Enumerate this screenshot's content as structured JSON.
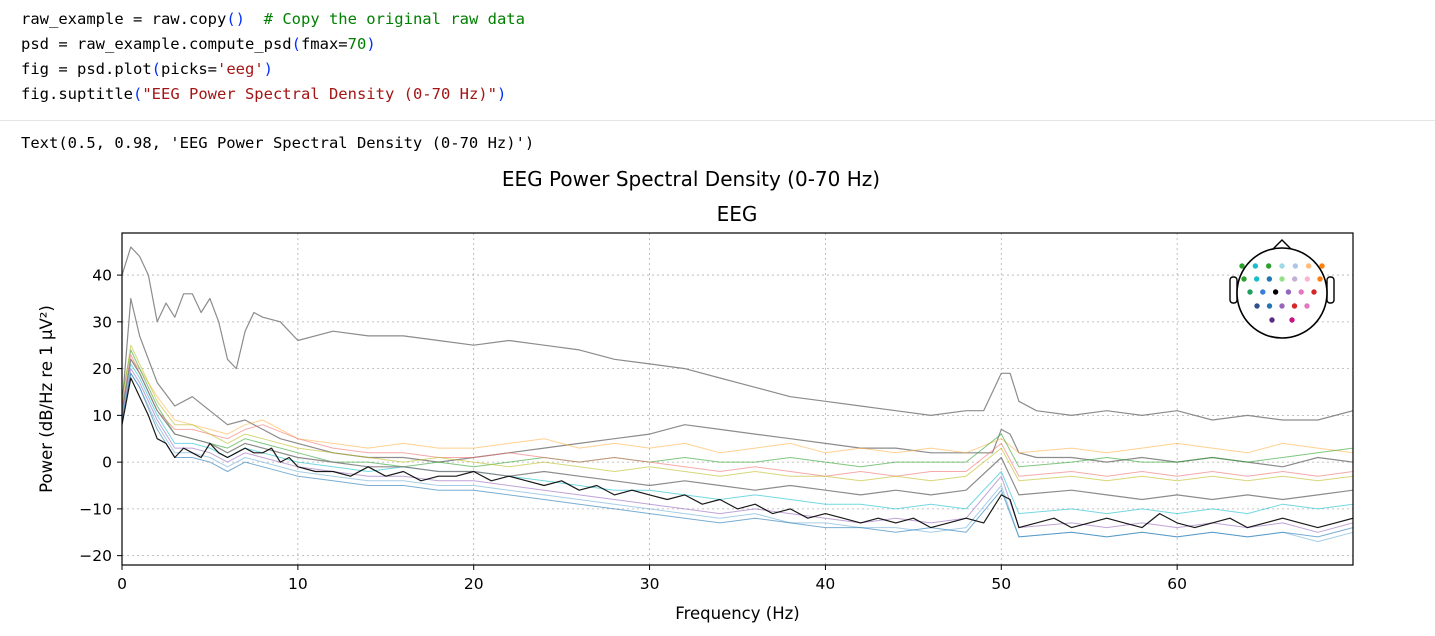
{
  "code": {
    "line1": {
      "a": "raw_example = raw.copy",
      "paren": "()",
      "b": "  ",
      "comment": "# Copy the original raw data"
    },
    "line2": {
      "a": "psd = raw_example.compute_psd",
      "open": "(",
      "b": "fmax=",
      "num": "70",
      "close": ")"
    },
    "line3": {
      "a": "fig = psd.plot",
      "open": "(",
      "b": "picks=",
      "str": "'eeg'",
      "close": ")"
    },
    "line4": {
      "a": "fig.suptitle",
      "open": "(",
      "str": "\"EEG Power Spectral Density (0-70 Hz)\"",
      "close": ")"
    }
  },
  "output": {
    "text": "Text(0.5, 0.98, 'EEG Power Spectral Density (0-70 Hz)')"
  },
  "chart_data": {
    "type": "line",
    "suptitle": "EEG Power Spectral Density (0-70 Hz)",
    "title": "EEG",
    "xlabel": "Frequency (Hz)",
    "ylabel": "Power (dB/Hz re 1 µV²)",
    "xlim": [
      0,
      70
    ],
    "ylim": [
      -22,
      49
    ],
    "xticks": [
      0,
      10,
      20,
      30,
      40,
      50,
      60
    ],
    "yticks": [
      -20,
      -10,
      0,
      10,
      20,
      30,
      40
    ],
    "grid": true,
    "sensor_inset": "top-right",
    "series": [
      {
        "color": "#7f7f7f",
        "x": [
          0,
          0.5,
          1,
          1.5,
          2,
          2.5,
          3,
          3.5,
          4,
          4.5,
          5,
          5.5,
          6,
          6.5,
          7,
          7.5,
          8,
          9,
          10,
          12,
          14,
          16,
          18,
          20,
          22,
          24,
          26,
          28,
          30,
          32,
          34,
          36,
          38,
          40,
          42,
          44,
          46,
          48,
          49,
          50,
          50.5,
          51,
          52,
          54,
          56,
          58,
          60,
          62,
          64,
          66,
          68,
          70
        ],
        "values": [
          40,
          46,
          44,
          40,
          30,
          34,
          31,
          36,
          36,
          32,
          35,
          30,
          22,
          20,
          28,
          32,
          31,
          30,
          26,
          28,
          27,
          27,
          26,
          25,
          26,
          25,
          24,
          22,
          21,
          20,
          18,
          16,
          14,
          13,
          12,
          11,
          10,
          11,
          11,
          19,
          19,
          13,
          11,
          10,
          11,
          10,
          11,
          9,
          10,
          9,
          9,
          11
        ]
      },
      {
        "color": "#7f7f7f",
        "x": [
          0,
          0.5,
          1,
          2,
          3,
          4,
          5,
          6,
          7,
          8,
          9,
          10,
          12,
          14,
          16,
          18,
          20,
          22,
          24,
          26,
          28,
          30,
          32,
          34,
          36,
          38,
          40,
          42,
          44,
          46,
          48,
          49.5,
          50,
          50.5,
          51,
          52,
          54,
          56,
          58,
          60,
          62,
          64,
          66,
          68,
          70
        ],
        "values": [
          12,
          35,
          27,
          17,
          12,
          14,
          11,
          8,
          9,
          7,
          5,
          4,
          2,
          1,
          1,
          0,
          1,
          2,
          3,
          4,
          5,
          6,
          8,
          7,
          6,
          5,
          4,
          3,
          3,
          2,
          2,
          2,
          7,
          6,
          2,
          1,
          1,
          0,
          1,
          0,
          1,
          0,
          -1,
          1,
          0
        ]
      },
      {
        "color": "#ffb347",
        "x": [
          0,
          0.5,
          1,
          2,
          3,
          4,
          5,
          6,
          7,
          8,
          10,
          12,
          14,
          16,
          18,
          20,
          22,
          24,
          26,
          28,
          30,
          32,
          34,
          36,
          38,
          40,
          42,
          44,
          46,
          48,
          50,
          51,
          54,
          56,
          58,
          60,
          62,
          64,
          66,
          68,
          70
        ],
        "values": [
          10,
          22,
          20,
          14,
          9,
          8,
          7,
          6,
          8,
          9,
          5,
          4,
          3,
          4,
          3,
          3,
          4,
          5,
          3,
          4,
          3,
          4,
          2,
          3,
          4,
          2,
          3,
          2,
          3,
          2,
          5,
          2,
          3,
          2,
          3,
          4,
          3,
          2,
          4,
          3,
          2
        ]
      },
      {
        "color": "#2ca02c",
        "x": [
          0,
          0.5,
          1,
          2,
          3,
          4,
          5,
          6,
          7,
          8,
          10,
          12,
          14,
          16,
          18,
          20,
          22,
          24,
          26,
          28,
          30,
          32,
          34,
          36,
          38,
          40,
          42,
          44,
          46,
          48,
          50,
          51,
          54,
          56,
          58,
          60,
          62,
          64,
          66,
          68,
          70
        ],
        "values": [
          14,
          24,
          20,
          12,
          6,
          5,
          4,
          3,
          5,
          4,
          2,
          0,
          0,
          -1,
          0,
          -1,
          0,
          1,
          0,
          1,
          0,
          1,
          0,
          0,
          1,
          0,
          -1,
          0,
          0,
          0,
          6,
          -1,
          0,
          1,
          0,
          0,
          1,
          0,
          1,
          2,
          3
        ]
      },
      {
        "color": "#f07272",
        "x": [
          0,
          0.5,
          1,
          2,
          3,
          4,
          5,
          6,
          7,
          8,
          10,
          12,
          14,
          16,
          18,
          20,
          22,
          24,
          26,
          28,
          30,
          32,
          34,
          36,
          38,
          40,
          42,
          44,
          46,
          48,
          50,
          51,
          54,
          56,
          58,
          60,
          62,
          64,
          66,
          68,
          70
        ],
        "values": [
          12,
          23,
          19,
          11,
          7,
          7,
          6,
          5,
          7,
          8,
          5,
          3,
          2,
          2,
          1,
          1,
          2,
          1,
          0,
          1,
          0,
          -1,
          -2,
          -1,
          -2,
          -3,
          -2,
          -3,
          -2,
          -2,
          4,
          -3,
          -2,
          -3,
          -2,
          -3,
          -2,
          -3,
          -2,
          -3,
          -2
        ]
      },
      {
        "color": "#9467bd",
        "x": [
          0,
          0.5,
          1,
          2,
          3,
          4,
          5,
          6,
          7,
          8,
          10,
          12,
          14,
          16,
          18,
          20,
          22,
          24,
          26,
          28,
          30,
          32,
          34,
          36,
          38,
          40,
          42,
          44,
          46,
          48,
          50,
          51,
          54,
          56,
          58,
          60,
          62,
          64,
          66,
          68,
          70
        ],
        "values": [
          10,
          20,
          17,
          9,
          3,
          3,
          2,
          0,
          2,
          1,
          -1,
          -2,
          -3,
          -3,
          -4,
          -4,
          -5,
          -6,
          -7,
          -8,
          -9,
          -10,
          -11,
          -10,
          -11,
          -12,
          -13,
          -12,
          -13,
          -12,
          -3,
          -14,
          -13,
          -14,
          -13,
          -14,
          -13,
          -14,
          -13,
          -15,
          -13
        ]
      },
      {
        "color": "#6baed6",
        "x": [
          0,
          0.5,
          1,
          2,
          3,
          4,
          5,
          6,
          7,
          8,
          10,
          12,
          14,
          16,
          18,
          20,
          22,
          24,
          26,
          28,
          30,
          32,
          34,
          36,
          38,
          40,
          42,
          44,
          46,
          48,
          50,
          51,
          54,
          56,
          58,
          60,
          62,
          64,
          66,
          68,
          70
        ],
        "values": [
          9,
          19,
          16,
          8,
          2,
          2,
          1,
          -1,
          1,
          0,
          -2,
          -3,
          -4,
          -4,
          -5,
          -5,
          -6,
          -7,
          -8,
          -9,
          -10,
          -11,
          -12,
          -11,
          -13,
          -13,
          -14,
          -14,
          -15,
          -14,
          -5,
          -16,
          -15,
          -16,
          -15,
          -16,
          -15,
          -16,
          -15,
          -17,
          -15
        ]
      },
      {
        "color": "#17becf",
        "x": [
          0,
          0.5,
          1,
          2,
          3,
          4,
          5,
          6,
          7,
          8,
          10,
          12,
          14,
          16,
          18,
          20,
          22,
          24,
          26,
          28,
          30,
          32,
          34,
          36,
          38,
          40,
          42,
          44,
          46,
          48,
          50,
          51,
          54,
          56,
          58,
          60,
          62,
          64,
          66,
          68,
          70
        ],
        "values": [
          11,
          21,
          18,
          10,
          4,
          4,
          3,
          1,
          3,
          2,
          0,
          -1,
          -2,
          -1,
          -2,
          -2,
          -3,
          -4,
          -5,
          -6,
          -6,
          -7,
          -8,
          -7,
          -8,
          -9,
          -9,
          -10,
          -9,
          -10,
          -2,
          -11,
          -10,
          -11,
          -10,
          -11,
          -10,
          -11,
          -9,
          -10,
          -9
        ]
      },
      {
        "color": "#bcbd22",
        "x": [
          0,
          0.5,
          1,
          2,
          3,
          4,
          5,
          6,
          7,
          8,
          10,
          12,
          14,
          16,
          18,
          20,
          22,
          24,
          26,
          28,
          30,
          32,
          34,
          36,
          38,
          40,
          42,
          44,
          46,
          48,
          50,
          51,
          54,
          56,
          58,
          60,
          62,
          64,
          66,
          68,
          70
        ],
        "values": [
          13,
          25,
          21,
          13,
          8,
          8,
          6,
          4,
          6,
          5,
          3,
          2,
          1,
          0,
          1,
          0,
          -1,
          0,
          -1,
          -2,
          -1,
          -2,
          -3,
          -2,
          -3,
          -3,
          -4,
          -3,
          -4,
          -3,
          3,
          -4,
          -3,
          -4,
          -3,
          -4,
          -3,
          -4,
          -3,
          -4,
          -3
        ]
      },
      {
        "color": "#7f7f7f",
        "x": [
          0,
          0.5,
          1,
          2,
          3,
          4,
          5,
          6,
          7,
          8,
          10,
          12,
          14,
          16,
          18,
          20,
          22,
          24,
          26,
          28,
          30,
          32,
          34,
          36,
          38,
          40,
          42,
          44,
          46,
          48,
          50,
          51,
          54,
          56,
          58,
          60,
          62,
          64,
          66,
          68,
          70
        ],
        "values": [
          11,
          22,
          19,
          11,
          6,
          5,
          4,
          2,
          4,
          3,
          1,
          0,
          -1,
          -1,
          -2,
          -2,
          -3,
          -2,
          -3,
          -4,
          -5,
          -4,
          -5,
          -6,
          -5,
          -6,
          -7,
          -6,
          -7,
          -6,
          1,
          -7,
          -6,
          -7,
          -8,
          -7,
          -8,
          -7,
          -8,
          -7,
          -6
        ]
      },
      {
        "color": "#1f77b4",
        "x": [
          0,
          0.5,
          1,
          2,
          3,
          4,
          5,
          6,
          7,
          8,
          10,
          12,
          14,
          16,
          18,
          20,
          22,
          24,
          26,
          28,
          30,
          32,
          34,
          36,
          38,
          40,
          42,
          44,
          46,
          48,
          50,
          51,
          54,
          56,
          58,
          60,
          62,
          64,
          66,
          68,
          70
        ],
        "values": [
          9,
          19,
          16,
          7,
          1,
          1,
          0,
          -2,
          0,
          -1,
          -3,
          -4,
          -5,
          -5,
          -6,
          -6,
          -7,
          -8,
          -9,
          -10,
          -11,
          -12,
          -13,
          -12,
          -13,
          -14,
          -14,
          -15,
          -14,
          -15,
          -6,
          -16,
          -15,
          -16,
          -15,
          -16,
          -15,
          -16,
          -15,
          -16,
          -14
        ]
      },
      {
        "color": "#000000",
        "x": [
          0,
          0.5,
          1,
          1.5,
          2,
          2.5,
          3,
          3.5,
          4,
          4.5,
          5,
          5.5,
          6,
          6.5,
          7,
          7.5,
          8,
          8.5,
          9,
          9.5,
          10,
          11,
          12,
          13,
          14,
          15,
          16,
          17,
          18,
          19,
          20,
          21,
          22,
          23,
          24,
          25,
          26,
          27,
          28,
          29,
          30,
          31,
          32,
          33,
          34,
          35,
          36,
          37,
          38,
          39,
          40,
          41,
          42,
          43,
          44,
          45,
          46,
          47,
          48,
          49,
          49.5,
          50,
          50.5,
          51,
          52,
          53,
          54,
          55,
          56,
          57,
          58,
          59,
          60,
          61,
          62,
          63,
          64,
          65,
          66,
          67,
          68,
          69,
          70
        ],
        "values": [
          8,
          18,
          14,
          10,
          5,
          4,
          1,
          3,
          2,
          1,
          4,
          2,
          1,
          2,
          3,
          2,
          2,
          3,
          0,
          1,
          -1,
          -2,
          -2,
          -3,
          -1,
          -3,
          -2,
          -4,
          -3,
          -3,
          -2,
          -4,
          -3,
          -4,
          -5,
          -4,
          -6,
          -5,
          -7,
          -6,
          -7,
          -8,
          -7,
          -9,
          -8,
          -10,
          -9,
          -11,
          -10,
          -12,
          -11,
          -12,
          -13,
          -12,
          -13,
          -12,
          -14,
          -13,
          -12,
          -13,
          -10,
          -7,
          -8,
          -14,
          -13,
          -12,
          -14,
          -13,
          -12,
          -13,
          -14,
          -11,
          -13,
          -14,
          -13,
          -12,
          -14,
          -13,
          -12,
          -13,
          -14,
          -13,
          -12
        ]
      }
    ],
    "sensor_dots": [
      {
        "color": "#2ca02c"
      },
      {
        "color": "#17becf"
      },
      {
        "color": "#2ca02c"
      },
      {
        "color": "#9edae5"
      },
      {
        "color": "#aec7e8"
      },
      {
        "color": "#ffbb78"
      },
      {
        "color": "#ff7f0e"
      },
      {
        "color": "#2ca02c"
      },
      {
        "color": "#17becf"
      },
      {
        "color": "#1f77b4"
      },
      {
        "color": "#98df8a"
      },
      {
        "color": "#c5b0d5"
      },
      {
        "color": "#f7b6d2"
      },
      {
        "color": "#ff7f0e"
      },
      {
        "color": "#1f9f5f"
      },
      {
        "color": "#3b7dd8"
      },
      {
        "color": "#000000"
      },
      {
        "color": "#9467bd"
      },
      {
        "color": "#e377c2"
      },
      {
        "color": "#d62728"
      },
      {
        "color": "#2f4f8f"
      },
      {
        "color": "#1f77b4"
      },
      {
        "color": "#9467bd"
      },
      {
        "color": "#d62728"
      },
      {
        "color": "#e377c2"
      },
      {
        "color": "#5b2c83"
      },
      {
        "color": "#c71585"
      }
    ]
  }
}
